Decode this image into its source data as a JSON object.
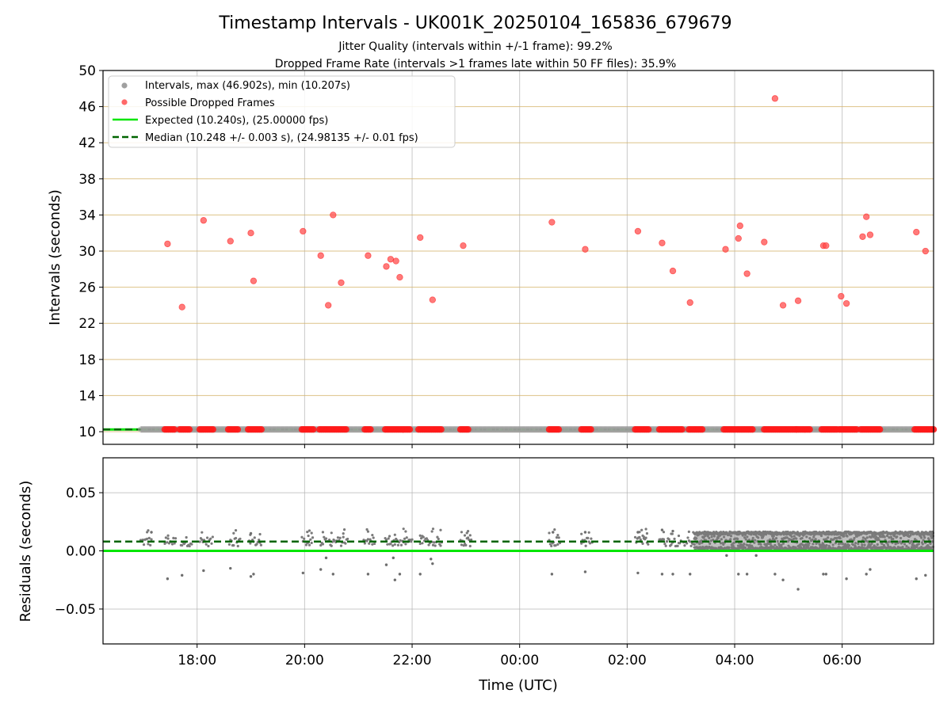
{
  "chart_data": [
    {
      "type": "scatter",
      "title": "Timestamp Intervals - UK001K_20250104_165836_679679",
      "subtitle_lines": [
        "Jitter Quality (intervals within +/-1 frame): 99.2%",
        "Dropped Frame Rate (intervals >1 frames late within 50 FF files): 35.9%"
      ],
      "xlabel": "",
      "ylabel": "Intervals (seconds)",
      "xlim_hours": [
        16.25,
        31.7
      ],
      "ylim": [
        8.6,
        50
      ],
      "yticks": [
        10,
        14,
        18,
        22,
        26,
        30,
        34,
        38,
        42,
        46,
        50
      ],
      "grid": true,
      "legend_placement": "upper-left",
      "legend": [
        {
          "label": "Intervals, max (46.902s), min (10.207s)",
          "style": "marker",
          "color": "#a0a0a0"
        },
        {
          "label": "Possible Dropped Frames",
          "style": "marker",
          "color": "#ff4d4d"
        },
        {
          "label": "Expected (10.240s), (25.00000 fps)",
          "style": "solid-line",
          "color": "#00e600"
        },
        {
          "label": "Median (10.248 +/- 0.003 s), (24.98135 +/- 0.01 fps)",
          "style": "dashed-line",
          "color": "#006400"
        }
      ],
      "expected_interval": 10.24,
      "median_interval": 10.248,
      "baseline_x_range_hours": [
        16.95,
        31.7
      ],
      "dropped_frames": [
        {
          "x": 17.45,
          "y": 30.8
        },
        {
          "x": 17.72,
          "y": 23.8
        },
        {
          "x": 18.12,
          "y": 33.4
        },
        {
          "x": 18.62,
          "y": 31.1
        },
        {
          "x": 19.0,
          "y": 32.0
        },
        {
          "x": 19.05,
          "y": 26.7
        },
        {
          "x": 19.97,
          "y": 32.2
        },
        {
          "x": 20.3,
          "y": 29.5
        },
        {
          "x": 20.44,
          "y": 24.0
        },
        {
          "x": 20.53,
          "y": 34.0
        },
        {
          "x": 20.68,
          "y": 26.5
        },
        {
          "x": 21.18,
          "y": 29.5
        },
        {
          "x": 21.52,
          "y": 28.3
        },
        {
          "x": 21.6,
          "y": 29.1
        },
        {
          "x": 21.7,
          "y": 28.9
        },
        {
          "x": 21.77,
          "y": 27.1
        },
        {
          "x": 22.15,
          "y": 31.5
        },
        {
          "x": 22.38,
          "y": 24.6
        },
        {
          "x": 22.95,
          "y": 30.6
        },
        {
          "x": 24.6,
          "y": 33.2
        },
        {
          "x": 25.22,
          "y": 30.2
        },
        {
          "x": 26.2,
          "y": 32.2
        },
        {
          "x": 26.65,
          "y": 30.9
        },
        {
          "x": 26.85,
          "y": 27.8
        },
        {
          "x": 27.17,
          "y": 24.3
        },
        {
          "x": 27.83,
          "y": 30.2
        },
        {
          "x": 28.07,
          "y": 31.4
        },
        {
          "x": 28.1,
          "y": 32.8
        },
        {
          "x": 28.23,
          "y": 27.5
        },
        {
          "x": 28.55,
          "y": 31.0
        },
        {
          "x": 28.75,
          "y": 46.9
        },
        {
          "x": 28.9,
          "y": 24.0
        },
        {
          "x": 29.18,
          "y": 24.5
        },
        {
          "x": 29.65,
          "y": 30.6
        },
        {
          "x": 29.7,
          "y": 30.6
        },
        {
          "x": 29.98,
          "y": 25.0
        },
        {
          "x": 30.08,
          "y": 24.2
        },
        {
          "x": 30.38,
          "y": 31.6
        },
        {
          "x": 30.45,
          "y": 33.8
        },
        {
          "x": 30.52,
          "y": 31.8
        },
        {
          "x": 31.38,
          "y": 32.1
        },
        {
          "x": 31.55,
          "y": 30.0
        }
      ],
      "baseline_dropped_clusters": [
        {
          "start": 17.4,
          "end": 17.6
        },
        {
          "start": 17.68,
          "end": 17.87
        },
        {
          "start": 18.05,
          "end": 18.3
        },
        {
          "start": 18.58,
          "end": 18.78
        },
        {
          "start": 18.95,
          "end": 19.22
        },
        {
          "start": 19.95,
          "end": 20.18
        },
        {
          "start": 20.28,
          "end": 20.8
        },
        {
          "start": 21.12,
          "end": 21.25
        },
        {
          "start": 21.5,
          "end": 21.98
        },
        {
          "start": 22.12,
          "end": 22.55
        },
        {
          "start": 22.9,
          "end": 23.05
        },
        {
          "start": 24.55,
          "end": 24.75
        },
        {
          "start": 25.15,
          "end": 25.35
        },
        {
          "start": 26.15,
          "end": 26.4
        },
        {
          "start": 26.6,
          "end": 27.02
        },
        {
          "start": 27.15,
          "end": 27.4
        },
        {
          "start": 27.8,
          "end": 28.02
        },
        {
          "start": 28.05,
          "end": 28.35
        },
        {
          "start": 28.55,
          "end": 29.15
        },
        {
          "start": 29.15,
          "end": 29.42
        },
        {
          "start": 29.62,
          "end": 29.9
        },
        {
          "start": 29.95,
          "end": 30.28
        },
        {
          "start": 30.35,
          "end": 30.7
        },
        {
          "start": 31.35,
          "end": 31.7
        }
      ]
    },
    {
      "type": "scatter",
      "xlabel": "Time (UTC)",
      "ylabel": "Residuals (seconds)",
      "xlim_hours": [
        16.25,
        31.7
      ],
      "ylim": [
        -0.08,
        0.08
      ],
      "yticks": [
        0.05,
        0.0,
        -0.05
      ],
      "ytick_labels": [
        "0.05",
        "0.00",
        "−0.05"
      ],
      "xticks_hours": [
        18,
        20,
        22,
        24,
        26,
        28,
        30
      ],
      "xtick_labels": [
        "18:00",
        "20:00",
        "22:00",
        "00:00",
        "02:00",
        "04:00",
        "06:00"
      ],
      "grid": true,
      "expected_residual": 0.0,
      "median_residual": 0.008,
      "sparse_clusters": [
        {
          "start": 16.95,
          "end": 17.15
        },
        {
          "start": 17.4,
          "end": 17.6
        },
        {
          "start": 17.7,
          "end": 17.9
        },
        {
          "start": 18.05,
          "end": 18.3
        },
        {
          "start": 18.6,
          "end": 18.8
        },
        {
          "start": 18.97,
          "end": 19.2
        },
        {
          "start": 19.95,
          "end": 20.15
        },
        {
          "start": 20.3,
          "end": 20.8
        },
        {
          "start": 21.1,
          "end": 21.3
        },
        {
          "start": 21.5,
          "end": 22.0
        },
        {
          "start": 22.15,
          "end": 22.55
        },
        {
          "start": 22.9,
          "end": 23.1
        },
        {
          "start": 24.55,
          "end": 24.75
        },
        {
          "start": 25.15,
          "end": 25.35
        },
        {
          "start": 26.15,
          "end": 26.4
        },
        {
          "start": 26.6,
          "end": 27.0
        },
        {
          "start": 27.05,
          "end": 27.25
        }
      ],
      "dense_range_hours": [
        27.25,
        31.7
      ],
      "outliers": [
        {
          "x": 17.45,
          "y": -0.024
        },
        {
          "x": 17.72,
          "y": -0.021
        },
        {
          "x": 18.12,
          "y": -0.017
        },
        {
          "x": 18.62,
          "y": -0.015
        },
        {
          "x": 19.0,
          "y": -0.022
        },
        {
          "x": 19.05,
          "y": -0.02
        },
        {
          "x": 19.97,
          "y": -0.019
        },
        {
          "x": 20.3,
          "y": -0.016
        },
        {
          "x": 20.53,
          "y": -0.02
        },
        {
          "x": 21.18,
          "y": -0.02
        },
        {
          "x": 21.52,
          "y": -0.012
        },
        {
          "x": 21.68,
          "y": -0.025
        },
        {
          "x": 21.77,
          "y": -0.02
        },
        {
          "x": 22.15,
          "y": -0.02
        },
        {
          "x": 22.38,
          "y": -0.011
        },
        {
          "x": 24.6,
          "y": -0.02
        },
        {
          "x": 25.22,
          "y": -0.018
        },
        {
          "x": 26.2,
          "y": -0.019
        },
        {
          "x": 26.65,
          "y": -0.02
        },
        {
          "x": 26.85,
          "y": -0.02
        },
        {
          "x": 27.17,
          "y": -0.02
        },
        {
          "x": 28.07,
          "y": -0.02
        },
        {
          "x": 28.23,
          "y": -0.02
        },
        {
          "x": 28.75,
          "y": -0.02
        },
        {
          "x": 28.9,
          "y": -0.025
        },
        {
          "x": 29.18,
          "y": -0.033
        },
        {
          "x": 29.65,
          "y": -0.02
        },
        {
          "x": 29.7,
          "y": -0.02
        },
        {
          "x": 30.08,
          "y": -0.024
        },
        {
          "x": 30.45,
          "y": -0.02
        },
        {
          "x": 30.52,
          "y": -0.016
        },
        {
          "x": 31.38,
          "y": -0.024
        },
        {
          "x": 31.55,
          "y": -0.021
        },
        {
          "x": 17.15,
          "y": 0.016
        },
        {
          "x": 19.0,
          "y": 0.015
        },
        {
          "x": 20.4,
          "y": -0.006
        },
        {
          "x": 21.65,
          "y": -0.006
        },
        {
          "x": 22.35,
          "y": -0.007
        },
        {
          "x": 24.62,
          "y": 0.016
        },
        {
          "x": 25.22,
          "y": 0.016
        },
        {
          "x": 26.2,
          "y": 0.016
        },
        {
          "x": 26.65,
          "y": 0.018
        },
        {
          "x": 26.85,
          "y": 0.017
        },
        {
          "x": 27.85,
          "y": -0.004
        },
        {
          "x": 28.4,
          "y": -0.004
        }
      ]
    }
  ]
}
